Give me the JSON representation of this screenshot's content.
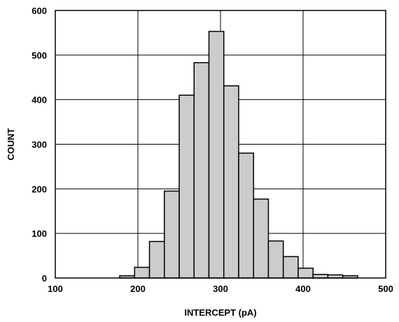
{
  "chart_data": {
    "type": "bar",
    "subtype": "histogram",
    "xlabel": "INTERCEPT (pA)",
    "ylabel": "COUNT",
    "xlim": [
      100,
      500
    ],
    "ylim": [
      0,
      600
    ],
    "grid": true,
    "xticks": [
      100,
      200,
      300,
      400,
      500
    ],
    "xtick_labels": [
      "100",
      "200",
      "300",
      "400",
      "500"
    ],
    "yticks": [
      0,
      100,
      200,
      300,
      400,
      500,
      600
    ],
    "ytick_labels": [
      "0",
      "100",
      "200",
      "300",
      "400",
      "500",
      "600"
    ],
    "bin_width": 18,
    "bin_starts": [
      178,
      196,
      214,
      232,
      250,
      268,
      286,
      304,
      322,
      340,
      358,
      376,
      394,
      412,
      430,
      448
    ],
    "values": [
      5,
      24,
      82,
      195,
      410,
      483,
      553,
      431,
      280,
      177,
      83,
      48,
      22,
      8,
      7,
      5
    ],
    "colors": {
      "bar_fill": "#cccccc",
      "bar_stroke": "#000000",
      "grid": "#000000",
      "frame": "#000000"
    }
  }
}
